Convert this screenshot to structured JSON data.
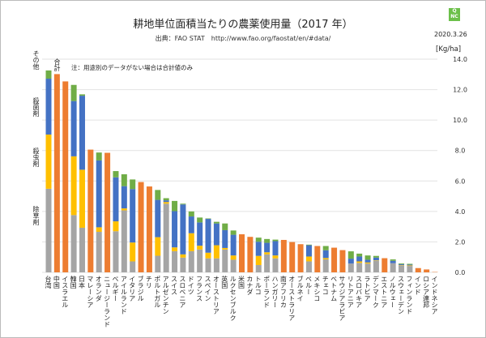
{
  "header": {
    "title": "耕地単位面積当たりの農薬使用量（2017 年）",
    "source": "出典：FAO STAT　http://www.fao.org/faostat/en/#data/",
    "date": "2020.3.26",
    "unit": "[Kg/ha]",
    "logo_text": "QNC"
  },
  "note": "注：用途別のデータがない場合は合計値のみ",
  "legend_labels": {
    "other": "その他",
    "fungicide": "殺菌剤",
    "insecticide": "殺虫剤",
    "herbicide": "除草剤",
    "total": "合計"
  },
  "chart_data": {
    "type": "bar",
    "stacked": true,
    "title": "耕地単位面積当たりの農薬使用量（2017 年）",
    "ylabel": "[Kg/ha]",
    "ylim": [
      0,
      14
    ],
    "yticks": [
      "0.0",
      "2.0",
      "4.0",
      "6.0",
      "8.0",
      "10.0",
      "12.0",
      "14.0"
    ],
    "y_axis_side": "right",
    "grid": true,
    "categories": [
      "台湾",
      "中国",
      "イスラエル",
      "韓国",
      "日本",
      "マレーシア",
      "オランダ",
      "ニュージーランド",
      "ベルギー",
      "アイルランド",
      "イタリア",
      "ブラジル",
      "チリ",
      "ポルトガル",
      "アルゼンチン",
      "スイス",
      "スロベニア",
      "ドイツ",
      "フランス",
      "スペイン",
      "オーストリア",
      "英国",
      "ルクセンブルク",
      "米国",
      "カナダ",
      "トルコ",
      "ポーランド",
      "ハンガリー",
      "南アフリカ",
      "オーストラリア",
      "ブルネイ",
      "ペルー",
      "メキシコ",
      "チェコ",
      "ベトナム",
      "サウジアラビア",
      "リトアニア",
      "スロバキア",
      "ラトビア",
      "デンマーク",
      "エストニア",
      "ノルウェー",
      "スウェーデン",
      "フィンランド",
      "インド",
      "ロシア連邦",
      "インドネシア"
    ],
    "series": [
      {
        "name": "除草剤",
        "color": "#a5a5a5",
        "values": [
          5.49,
          null,
          null,
          3.76,
          2.93,
          null,
          2.66,
          null,
          2.7,
          4.07,
          0.72,
          null,
          null,
          1.09,
          4.51,
          1.39,
          0.97,
          1.39,
          1.5,
          0.92,
          0.92,
          1.5,
          0.83,
          null,
          null,
          0.48,
          1.18,
          0.92,
          null,
          null,
          null,
          0.72,
          null,
          0.85,
          null,
          null,
          0.58,
          0.62,
          0.58,
          0.76,
          null,
          0.6,
          0.46,
          0.42,
          null,
          null,
          null
        ]
      },
      {
        "name": "殺虫剤",
        "color": "#ffc000",
        "values": [
          3.56,
          null,
          null,
          3.86,
          3.81,
          null,
          0.3,
          null,
          0.65,
          0.13,
          1.24,
          null,
          null,
          1.22,
          0.11,
          0.25,
          0.21,
          1.18,
          0.25,
          0.37,
          0.86,
          0.1,
          0.28,
          null,
          null,
          0.6,
          0.14,
          0.19,
          null,
          null,
          null,
          0.32,
          null,
          0.09,
          null,
          null,
          0.0,
          0.1,
          0.07,
          0.03,
          null,
          0.0,
          0.02,
          0.04,
          null,
          null,
          null
        ]
      },
      {
        "name": "殺菌剤",
        "color": "#4472c4",
        "values": [
          3.67,
          null,
          null,
          3.63,
          4.86,
          null,
          4.39,
          null,
          2.89,
          1.46,
          3.51,
          null,
          null,
          2.45,
          0.11,
          2.38,
          3.28,
          1.1,
          1.53,
          2.22,
          1.43,
          1.17,
          1.36,
          null,
          null,
          0.93,
          0.62,
          0.94,
          null,
          null,
          null,
          0.74,
          null,
          0.51,
          null,
          null,
          0.32,
          0.32,
          0.18,
          0.18,
          null,
          0.16,
          0.05,
          0.05,
          null,
          null,
          null
        ]
      },
      {
        "name": "その他",
        "color": "#70ad47",
        "values": [
          0.54,
          null,
          null,
          1.06,
          0.09,
          null,
          0.52,
          null,
          0.41,
          0.78,
          0.63,
          null,
          null,
          0.65,
          0.14,
          0.67,
          0.05,
          0.33,
          0.32,
          0.03,
          0.11,
          0.44,
          0.28,
          null,
          null,
          0.27,
          0.25,
          0.1,
          null,
          null,
          null,
          0.04,
          null,
          0.28,
          null,
          null,
          0.48,
          0.19,
          0.28,
          0.11,
          null,
          0.09,
          0.05,
          0.05,
          null,
          null,
          null
        ]
      },
      {
        "name": "合計",
        "color": "#ed7d31",
        "values": [
          null,
          13.02,
          12.54,
          null,
          null,
          8.06,
          null,
          7.85,
          null,
          null,
          null,
          5.93,
          5.64,
          null,
          null,
          null,
          null,
          null,
          null,
          null,
          null,
          null,
          null,
          2.5,
          2.33,
          null,
          null,
          null,
          2.13,
          1.99,
          1.85,
          null,
          1.73,
          null,
          1.62,
          1.46,
          null,
          null,
          null,
          null,
          0.93,
          null,
          null,
          null,
          0.28,
          0.19,
          0.05
        ]
      }
    ]
  }
}
